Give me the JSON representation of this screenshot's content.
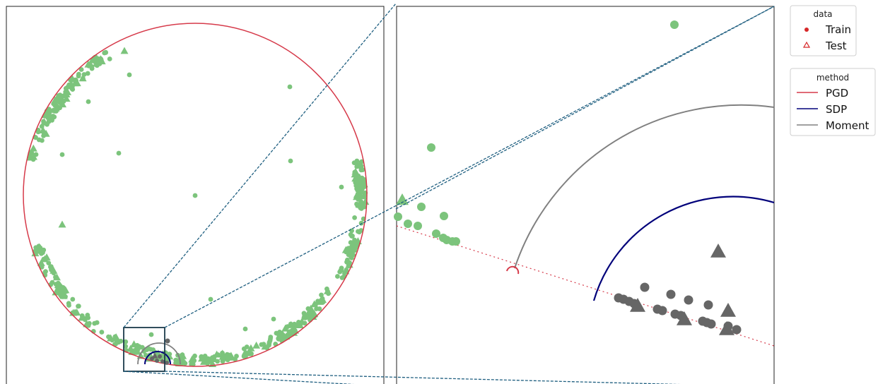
{
  "legends": {
    "data": {
      "title": "data",
      "entries": [
        {
          "label": "Train",
          "marker": "dot",
          "color": "#d62728"
        },
        {
          "label": "Test",
          "marker": "triangle-outline",
          "color": "#d62728"
        }
      ]
    },
    "method": {
      "title": "method",
      "entries": [
        {
          "label": "PGD",
          "color": "#d63a4a"
        },
        {
          "label": "SDP",
          "color": "#00007a"
        },
        {
          "label": "Moment",
          "color": "#808080"
        }
      ]
    }
  },
  "colors": {
    "train_points": "#7cc47c",
    "subject_points": "#666666",
    "pgd": "#d63a4a",
    "sdp": "#00007a",
    "moment": "#808080",
    "zoom_box": "#1c3a4a",
    "connector": "#1f5f80"
  },
  "chart_data": [
    {
      "type": "scatter",
      "panel": "overview",
      "title": "",
      "xlabel": "",
      "ylabel": "",
      "grid": false,
      "ticks": false,
      "notes_visual": "green points clustered along a large circle; red PGD circle fitted to them; a zoom box at the bottom-left",
      "series": [
        {
          "name": "Train",
          "marker": "dot"
        },
        {
          "name": "Test",
          "marker": "triangle"
        }
      ]
    },
    {
      "type": "scatter",
      "panel": "zoom",
      "title": "",
      "xlabel": "",
      "ylabel": "",
      "grid": false,
      "ticks": false,
      "series": [
        {
          "name": "PGD",
          "style": "small arc + dotted line"
        },
        {
          "name": "SDP",
          "style": "arc"
        },
        {
          "name": "Moment",
          "style": "arc"
        }
      ]
    }
  ]
}
